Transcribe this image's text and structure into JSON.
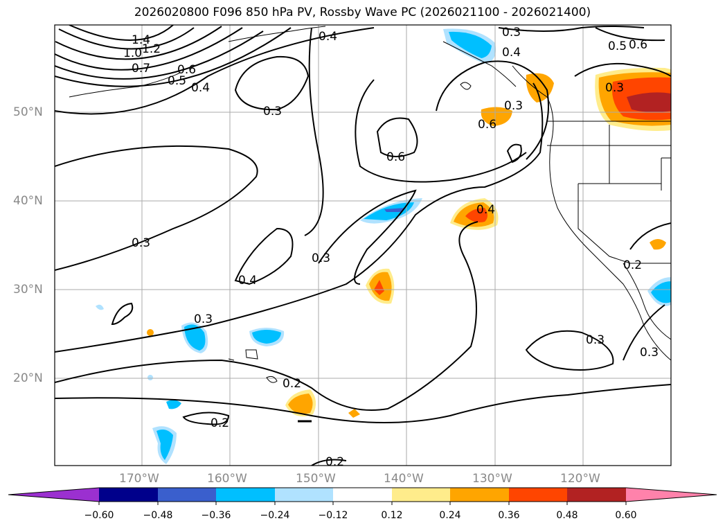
{
  "title": "2026020800 F096 850 hPa PV, Rossby Wave PC (2026021100 - 2026021400)",
  "lat_labels": [
    "50°N",
    "40°N",
    "30°N",
    "20°N"
  ],
  "lon_labels": [
    "170°W",
    "160°W",
    "150°W",
    "140°W",
    "130°W",
    "120°W"
  ],
  "contour_labels": [
    "1.4",
    "1.2",
    "1.0",
    "0.7",
    "0.6",
    "0.5",
    "0.4",
    "0.3",
    "0.4",
    "0.3",
    "0.4",
    "0.5",
    "0.6",
    "0.3",
    "0.6",
    "0.6",
    "0.3",
    "0.4",
    "0.3",
    "0.4",
    "0.3",
    "0.2",
    "0.2",
    "0.2",
    "0.3",
    "0.3",
    "0.2",
    "0.3"
  ],
  "colorbar": {
    "ticks": [
      "−0.60",
      "−0.48",
      "−0.36",
      "−0.24",
      "−0.12",
      "0.12",
      "0.24",
      "0.36",
      "0.48",
      "0.60"
    ],
    "colors": [
      "#9b30d0",
      "#00008b",
      "#3a5fcd",
      "#00bfff",
      "#b0e2ff",
      "#ffffff",
      "#ffec8b",
      "#ffa500",
      "#ff4500",
      "#b22222",
      "#ff82ab"
    ]
  }
}
